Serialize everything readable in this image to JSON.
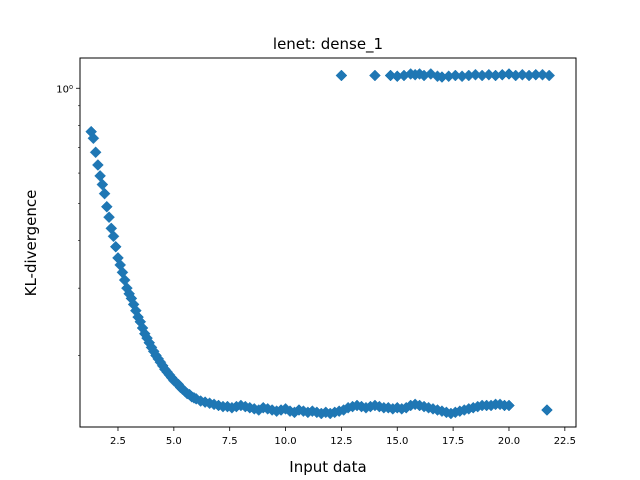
{
  "chart_data": {
    "type": "scatter",
    "title": "lenet: dense_1",
    "xlabel": "Input data",
    "ylabel": "KL-divergence",
    "xlim": [
      0.8,
      23.0
    ],
    "ylim": [
      0.13,
      1.2
    ],
    "y_scale": "log",
    "x_ticks": [
      2.5,
      5.0,
      7.5,
      10.0,
      12.5,
      15.0,
      17.5,
      20.0,
      22.5
    ],
    "x_tick_labels": [
      "2.5",
      "5.0",
      "7.5",
      "10.0",
      "12.5",
      "15.0",
      "17.5",
      "20.0",
      "22.5"
    ],
    "y_ticks": [
      1.0
    ],
    "y_tick_labels": [
      "10⁰"
    ],
    "marker": "diamond",
    "color": "#1f77b4",
    "grid": false,
    "series": [
      {
        "x": [
          1.3,
          1.4,
          1.5,
          1.6,
          1.7,
          1.8,
          1.9,
          2.0,
          2.1,
          2.2,
          2.3,
          2.4,
          2.5,
          2.6,
          2.7,
          2.8,
          2.9,
          3.0,
          3.1,
          3.2,
          3.3,
          3.4,
          3.5,
          3.6,
          3.7,
          3.8,
          3.9,
          4.0,
          4.1,
          4.2,
          4.3,
          4.4,
          4.5,
          4.6,
          4.7,
          4.8,
          4.9,
          5.0,
          5.1,
          5.2,
          5.3,
          5.4,
          5.5,
          5.6,
          5.7,
          5.8,
          5.9,
          6.0,
          6.2,
          6.4,
          6.6,
          6.8,
          7.0,
          7.2,
          7.4,
          7.6,
          7.8,
          8.0,
          8.2,
          8.4,
          8.6,
          8.8,
          9.0,
          9.2,
          9.4,
          9.6,
          9.8,
          10.0,
          10.2,
          10.4,
          10.6,
          10.8,
          11.0,
          11.2,
          11.4,
          11.6,
          11.8,
          12.0,
          12.2,
          12.4,
          12.6,
          12.8,
          13.0,
          13.2,
          13.4,
          13.6,
          13.8,
          14.0,
          14.2,
          14.4,
          14.6,
          14.8,
          15.0,
          15.2,
          15.4,
          15.6,
          15.8,
          16.0,
          16.2,
          16.4,
          16.6,
          16.8,
          17.0,
          17.2,
          17.4,
          17.6,
          17.8,
          18.0,
          18.2,
          18.4,
          18.6,
          18.8,
          19.0,
          19.2,
          19.4,
          19.6,
          19.8,
          20.0,
          21.7
        ],
        "y": [
          0.77,
          0.74,
          0.68,
          0.63,
          0.59,
          0.56,
          0.53,
          0.49,
          0.46,
          0.43,
          0.41,
          0.385,
          0.36,
          0.345,
          0.33,
          0.315,
          0.3,
          0.29,
          0.282,
          0.272,
          0.262,
          0.252,
          0.245,
          0.236,
          0.228,
          0.222,
          0.216,
          0.21,
          0.205,
          0.2,
          0.196,
          0.192,
          0.188,
          0.184,
          0.181,
          0.178,
          0.175,
          0.172,
          0.17,
          0.168,
          0.165,
          0.163,
          0.161,
          0.159,
          0.158,
          0.156,
          0.155,
          0.154,
          0.152,
          0.151,
          0.15,
          0.149,
          0.148,
          0.147,
          0.147,
          0.146,
          0.147,
          0.148,
          0.147,
          0.146,
          0.145,
          0.144,
          0.146,
          0.145,
          0.144,
          0.143,
          0.144,
          0.145,
          0.143,
          0.142,
          0.144,
          0.143,
          0.142,
          0.143,
          0.142,
          0.141,
          0.142,
          0.141,
          0.142,
          0.143,
          0.144,
          0.146,
          0.147,
          0.148,
          0.147,
          0.146,
          0.147,
          0.148,
          0.147,
          0.146,
          0.146,
          0.145,
          0.146,
          0.145,
          0.146,
          0.148,
          0.149,
          0.148,
          0.147,
          0.146,
          0.145,
          0.144,
          0.143,
          0.142,
          0.141,
          0.142,
          0.143,
          0.144,
          0.145,
          0.146,
          0.147,
          0.148,
          0.148,
          0.148,
          0.149,
          0.149,
          0.148,
          0.148,
          0.144
        ]
      },
      {
        "x": [
          12.5,
          14.0,
          14.7,
          15.0,
          15.3,
          15.6,
          15.8,
          16.0,
          16.2,
          16.5,
          16.8,
          17.0,
          17.3,
          17.6,
          17.9,
          18.2,
          18.5,
          18.8,
          19.1,
          19.4,
          19.7,
          20.0,
          20.3,
          20.6,
          20.9,
          21.2,
          21.5,
          21.8
        ],
        "y": [
          1.08,
          1.08,
          1.08,
          1.075,
          1.08,
          1.09,
          1.085,
          1.09,
          1.08,
          1.09,
          1.075,
          1.07,
          1.075,
          1.08,
          1.075,
          1.08,
          1.085,
          1.08,
          1.085,
          1.08,
          1.085,
          1.09,
          1.08,
          1.085,
          1.08,
          1.085,
          1.085,
          1.08
        ]
      }
    ]
  }
}
